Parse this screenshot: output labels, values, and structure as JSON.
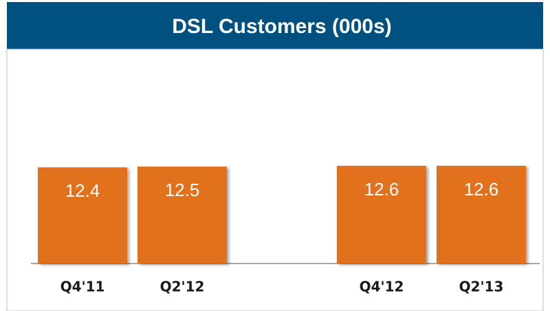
{
  "chart_data": {
    "type": "bar",
    "title": "DSL Customers (000s)",
    "categories": [
      "Q4'11",
      "Q2'12",
      null,
      "Q4'12",
      "Q2'13"
    ],
    "values": [
      12.4,
      12.5,
      null,
      12.6,
      12.6
    ],
    "color": "#e2711d"
  }
}
